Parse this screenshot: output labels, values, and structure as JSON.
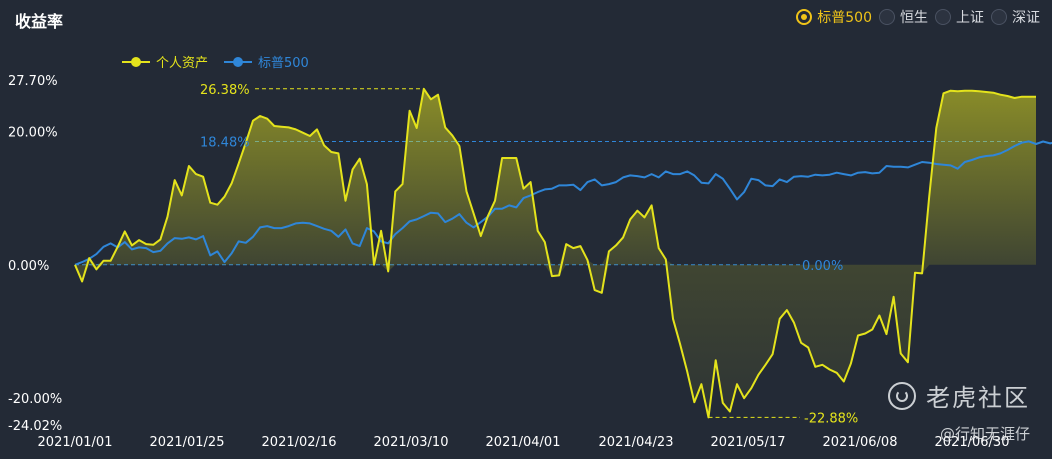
{
  "header": {
    "title": "收益率"
  },
  "benchmarks": [
    {
      "label": "标普500",
      "selected": true
    },
    {
      "label": "恒生",
      "selected": false
    },
    {
      "label": "上证",
      "selected": false
    },
    {
      "label": "深证",
      "selected": false
    }
  ],
  "watermark": {
    "brand": "老虎社区",
    "user": "@行知无涯仔"
  },
  "colors": {
    "portfolio": "#e4e31c",
    "benchmark": "#2f86d8",
    "background": "#232a36",
    "accent": "#f0c419"
  },
  "chart_data": {
    "type": "line",
    "title": "",
    "xlabel": "",
    "ylabel": "",
    "ylim": [
      -24.02,
      27.7
    ],
    "y_ticks": [
      "27.70%",
      "20.00%",
      "0.00%",
      "-20.00%",
      "-24.02%"
    ],
    "x_ticks": [
      "2021/01/01",
      "2021/01/25",
      "2021/02/16",
      "2021/03/10",
      "2021/04/01",
      "2021/04/23",
      "2021/05/17",
      "2021/06/08",
      "2021/06/30"
    ],
    "annotations": [
      {
        "series": "个人资产",
        "label": "26.38%",
        "value": 26.38
      },
      {
        "series": "个人资产",
        "label": "-22.88%",
        "value": -22.88
      },
      {
        "series": "标普500",
        "label": "18.48%",
        "value": 18.48
      },
      {
        "series": "标普500",
        "label": "0.00%",
        "value": 0.0
      }
    ],
    "series": [
      {
        "name": "个人资产",
        "values": [
          0.0,
          -2.5,
          1.0,
          -0.7,
          0.6,
          0.6,
          2.7,
          5.0,
          2.9,
          3.7,
          3.1,
          3.0,
          3.8,
          7.2,
          12.7,
          10.4,
          14.8,
          13.6,
          13.2,
          9.3,
          9.0,
          10.2,
          12.2,
          15.2,
          18.3,
          21.6,
          22.3,
          21.9,
          20.8,
          20.7,
          20.6,
          20.3,
          19.8,
          19.3,
          20.3,
          17.9,
          16.9,
          16.7,
          9.6,
          14.3,
          15.9,
          12.1,
          0.0,
          5.1,
          -1.0,
          11.0,
          12.1,
          23.1,
          20.5,
          26.38,
          24.8,
          25.5,
          20.6,
          19.4,
          17.8,
          11.0,
          7.7,
          4.3,
          7.3,
          9.6,
          16.0,
          16.0,
          16.0,
          11.4,
          12.4,
          5.1,
          3.4,
          -1.7,
          -1.6,
          3.1,
          2.5,
          2.8,
          0.7,
          -3.8,
          -4.2,
          2.0,
          2.9,
          4.1,
          6.8,
          8.1,
          7.1,
          8.9,
          2.5,
          0.8,
          -8.1,
          -11.9,
          -16.0,
          -20.6,
          -17.9,
          -22.88,
          -14.3,
          -20.7,
          -22.0,
          -17.9,
          -20.0,
          -18.5,
          -16.5,
          -15.0,
          -13.4,
          -8.1,
          -6.8,
          -8.7,
          -11.7,
          -12.4,
          -15.3,
          -15.0,
          -15.7,
          -16.2,
          -17.5,
          -14.8,
          -10.6,
          -10.3,
          -9.7,
          -7.6,
          -10.4,
          -4.8,
          -13.3,
          -14.6,
          -1.2,
          -1.3,
          10.2,
          20.5,
          25.7,
          26.1,
          26.0,
          26.1,
          26.1,
          26.0,
          25.9,
          25.8,
          25.5,
          25.3,
          25.0,
          25.2,
          25.2,
          25.2
        ]
      },
      {
        "name": "标普500",
        "values": [
          0.0,
          0.4,
          0.9,
          1.6,
          2.7,
          3.2,
          2.6,
          3.4,
          2.3,
          2.6,
          2.5,
          1.9,
          2.1,
          3.2,
          4.0,
          3.9,
          4.1,
          3.8,
          4.3,
          1.4,
          2.0,
          0.4,
          1.7,
          3.5,
          3.3,
          4.2,
          5.6,
          5.8,
          5.5,
          5.5,
          5.8,
          6.2,
          6.3,
          6.2,
          5.8,
          5.4,
          5.1,
          4.2,
          5.3,
          3.2,
          2.8,
          5.5,
          5.0,
          3.5,
          3.2,
          4.6,
          5.5,
          6.5,
          6.8,
          7.3,
          7.8,
          7.7,
          6.4,
          6.9,
          7.6,
          6.3,
          5.6,
          6.4,
          7.2,
          8.4,
          8.4,
          8.9,
          8.6,
          10.0,
          10.4,
          10.9,
          11.3,
          11.4,
          11.9,
          11.9,
          12.0,
          11.2,
          12.4,
          12.8,
          11.9,
          12.1,
          12.4,
          13.1,
          13.4,
          13.3,
          13.1,
          13.6,
          13.1,
          14.0,
          13.6,
          13.6,
          14.0,
          13.4,
          12.3,
          12.2,
          13.6,
          12.9,
          11.4,
          9.8,
          10.9,
          12.9,
          12.7,
          11.9,
          11.8,
          12.8,
          12.4,
          13.2,
          13.3,
          13.2,
          13.5,
          13.4,
          13.5,
          13.8,
          13.6,
          13.4,
          13.8,
          13.9,
          13.7,
          13.8,
          14.8,
          14.7,
          14.7,
          14.6,
          15.0,
          15.4,
          15.3,
          15.1,
          15.0,
          14.9,
          14.4,
          15.4,
          15.7,
          16.1,
          16.3,
          16.4,
          16.7,
          17.2,
          17.8,
          18.3,
          18.5,
          18.1,
          18.48,
          18.2,
          18.5,
          18.2
        ]
      }
    ],
    "legend": {
      "position": "top-left"
    },
    "grid": false
  }
}
